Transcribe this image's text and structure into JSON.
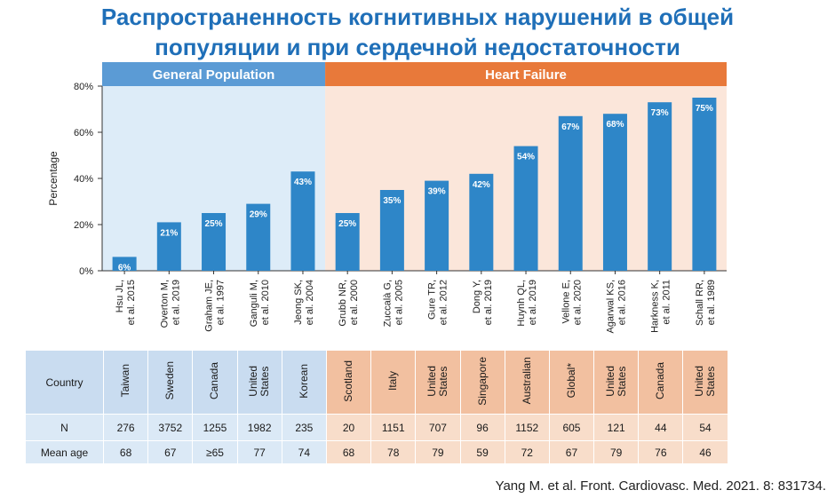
{
  "title_line1": "Распространенность когнитивных нарушений в общей",
  "title_line2": "популяции и при сердечной недостаточности",
  "citation": "Yang M. et al. Front. Cardiovasc. Med. 2021. 8: 831734.",
  "colors": {
    "title": "#1f6fb8",
    "gp_band": "#5b9bd5",
    "gp_bg": "#ddecf8",
    "hf_band": "#e8793a",
    "hf_bg": "#fbe6da",
    "bar": "#2e86c8",
    "table_gp_header": "#c9dcf0",
    "table_gp_row": "#dbe9f6",
    "table_hf_header": "#f2c0a0",
    "table_hf_row": "#f8ddca"
  },
  "chart_data": {
    "type": "bar",
    "ylabel": "Percentage",
    "ylim": [
      0,
      80
    ],
    "yticks": [
      "0%",
      "20%",
      "40%",
      "60%",
      "80%"
    ],
    "groups": [
      {
        "name": "General Population",
        "start": 0,
        "end": 4
      },
      {
        "name": "Heart Failure",
        "start": 5,
        "end": 13
      }
    ],
    "categories": [
      "Hsu JL,\net al. 2015",
      "Overton M,\net al. 2019",
      "Graham JE,\net al. 1997",
      "Ganguli M,\net al. 2010",
      "Jeong SK,\net al. 2004",
      "Grubb NR,\net al. 2000",
      "Zuccalà G,\net al. 2005",
      "Gure TR,\net al. 2012",
      "Dong Y,\net al. 2019",
      "Huynh QL,\net al. 2019",
      "Vellone E,\net al. 2020",
      "Agarwal KS,\net al. 2016",
      "Harkness K,\net al. 2011",
      "Schall RR,\net al. 1989"
    ],
    "values": [
      6,
      21,
      25,
      29,
      43,
      25,
      35,
      39,
      42,
      54,
      67,
      68,
      73,
      75
    ],
    "value_labels": [
      "6%",
      "21%",
      "25%",
      "29%",
      "43%",
      "25%",
      "35%",
      "39%",
      "42%",
      "54%",
      "67%",
      "68%",
      "73%",
      "75%"
    ]
  },
  "table": {
    "row_labels": [
      "Country",
      "N",
      "Mean age"
    ],
    "countries": [
      "Taiwan",
      "Sweden",
      "Canada",
      "United\nStates",
      "Korean",
      "Scotland",
      "Italy",
      "United\nStates",
      "Singapore",
      "Australian",
      "Global*",
      "United\nStates",
      "Canada",
      "United\nStates"
    ],
    "n": [
      "276",
      "3752",
      "1255",
      "1982",
      "235",
      "20",
      "1151",
      "707",
      "96",
      "1152",
      "605",
      "121",
      "44",
      "54"
    ],
    "mean_age": [
      "68",
      "67",
      "≥65",
      "77",
      "74",
      "68",
      "78",
      "79",
      "59",
      "72",
      "67",
      "79",
      "76",
      "46"
    ]
  }
}
